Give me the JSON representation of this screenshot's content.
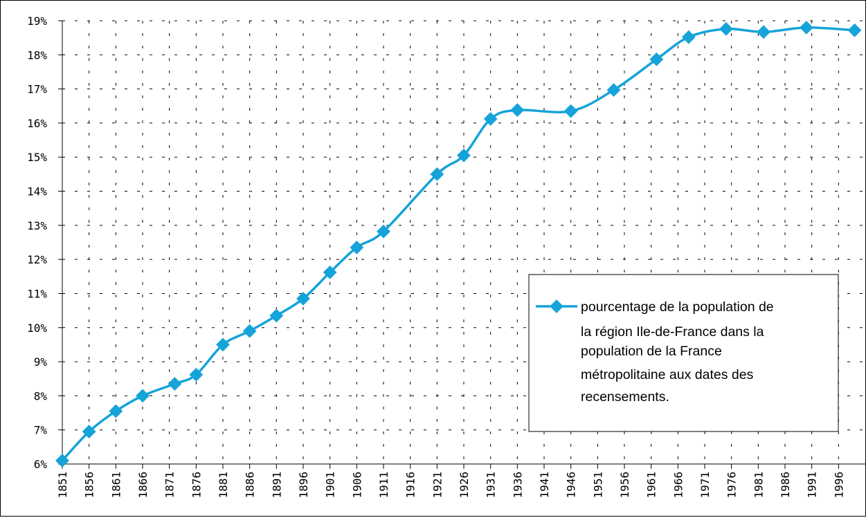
{
  "chart_data": {
    "type": "line",
    "title": "",
    "xlabel": "",
    "ylabel": "",
    "x_tick_labels": [
      "1851",
      "1856",
      "1861",
      "1866",
      "1871",
      "1876",
      "1881",
      "1886",
      "1891",
      "1896",
      "1901",
      "1906",
      "1911",
      "1916",
      "1921",
      "1926",
      "1931",
      "1936",
      "1941",
      "1946",
      "1951",
      "1956",
      "1961",
      "1966",
      "1971",
      "1976",
      "1981",
      "1986",
      "1991",
      "1996"
    ],
    "y_tick_labels": [
      "6%",
      "7%",
      "8%",
      "9%",
      "10%",
      "11%",
      "12%",
      "13%",
      "14%",
      "15%",
      "16%",
      "17%",
      "18%",
      "19%"
    ],
    "xlim": [
      1851,
      2001
    ],
    "ylim": [
      6,
      19
    ],
    "y_unit": "%",
    "grid": true,
    "grid_style": "dashed",
    "legend_position": "right",
    "series": [
      {
        "name": "pourcentage de la population de la région Ile-de-France dans la population de la France métropolitaine aux dates des recensements.",
        "color": "#15a3d9",
        "marker": "diamond",
        "points": [
          {
            "x": 1851,
            "y": 6.1
          },
          {
            "x": 1856,
            "y": 6.95
          },
          {
            "x": 1861,
            "y": 7.55
          },
          {
            "x": 1866,
            "y": 8.0
          },
          {
            "x": 1872,
            "y": 8.35
          },
          {
            "x": 1876,
            "y": 8.62
          },
          {
            "x": 1881,
            "y": 9.5
          },
          {
            "x": 1886,
            "y": 9.9
          },
          {
            "x": 1891,
            "y": 10.35
          },
          {
            "x": 1896,
            "y": 10.85
          },
          {
            "x": 1901,
            "y": 11.62
          },
          {
            "x": 1906,
            "y": 12.35
          },
          {
            "x": 1911,
            "y": 12.82
          },
          {
            "x": 1921,
            "y": 14.5
          },
          {
            "x": 1926,
            "y": 15.05
          },
          {
            "x": 1931,
            "y": 16.12
          },
          {
            "x": 1936,
            "y": 16.38
          },
          {
            "x": 1946,
            "y": 16.35
          },
          {
            "x": 1954,
            "y": 16.97
          },
          {
            "x": 1962,
            "y": 17.87
          },
          {
            "x": 1968,
            "y": 18.52
          },
          {
            "x": 1975,
            "y": 18.76
          },
          {
            "x": 1982,
            "y": 18.67
          },
          {
            "x": 1990,
            "y": 18.8
          },
          {
            "x": 1999,
            "y": 18.72
          }
        ]
      }
    ],
    "legend_lines": [
      "pourcentage de la population de",
      "la région Ile-de-France dans la",
      "population de la France",
      "métropolitaine aux dates des",
      "recensements."
    ]
  }
}
